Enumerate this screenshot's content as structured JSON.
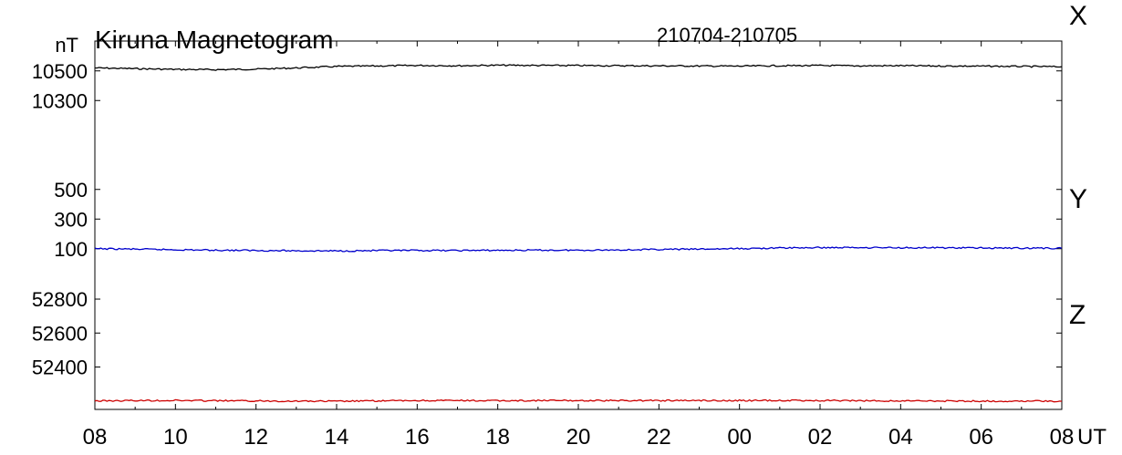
{
  "chart_data": {
    "type": "line",
    "title": "Kiruna Magnetogram",
    "date_range": "210704-210705",
    "y_unit": "nT",
    "x_unit": "UT",
    "x_ticks": [
      "08",
      "10",
      "12",
      "14",
      "16",
      "18",
      "20",
      "22",
      "00",
      "02",
      "04",
      "06",
      "08"
    ],
    "x_hours": [
      0,
      24
    ],
    "grid": false,
    "legend": "component labels on right edge",
    "series": [
      {
        "name": "X",
        "color": "#000000",
        "ticks": [
          10500,
          10300
        ],
        "y_range": [
          9840,
          10640
        ],
        "x": [
          0,
          1,
          2,
          3,
          4,
          5,
          6,
          7,
          8,
          9,
          10,
          11,
          12,
          13,
          14,
          15,
          16,
          17,
          18,
          19,
          20,
          21,
          22,
          23,
          24
        ],
        "values": [
          10520,
          10515,
          10510,
          10508,
          10512,
          10520,
          10530,
          10533,
          10537,
          10535,
          10538,
          10537,
          10536,
          10535,
          10534,
          10533,
          10532,
          10535,
          10536,
          10534,
          10535,
          10533,
          10532,
          10530,
          10528
        ]
      },
      {
        "name": "Y",
        "color": "#0000cc",
        "ticks": [
          500,
          300,
          100
        ],
        "y_range": [
          -160,
          640
        ],
        "x": [
          0,
          1,
          2,
          3,
          4,
          5,
          6,
          7,
          8,
          9,
          10,
          11,
          12,
          13,
          14,
          15,
          16,
          17,
          18,
          19,
          20,
          21,
          22,
          23,
          24
        ],
        "values": [
          100,
          97,
          93,
          90,
          88,
          86,
          85,
          87,
          88,
          88,
          89,
          90,
          90,
          92,
          95,
          97,
          100,
          105,
          107,
          108,
          107,
          106,
          105,
          104,
          103
        ]
      },
      {
        "name": "Z",
        "color": "#cc0000",
        "ticks": [
          52800,
          52600,
          52400
        ],
        "y_range": [
          52150,
          52870
        ],
        "x": [
          0,
          1,
          2,
          3,
          4,
          5,
          6,
          7,
          8,
          9,
          10,
          11,
          12,
          13,
          14,
          15,
          16,
          17,
          18,
          19,
          20,
          21,
          22,
          23,
          24
        ],
        "values": [
          52200,
          52202,
          52203,
          52201,
          52200,
          52199,
          52198,
          52200,
          52202,
          52202,
          52201,
          52202,
          52202,
          52202,
          52202,
          52203,
          52202,
          52203,
          52202,
          52201,
          52200,
          52200,
          52199,
          52199,
          52198
        ]
      }
    ]
  }
}
